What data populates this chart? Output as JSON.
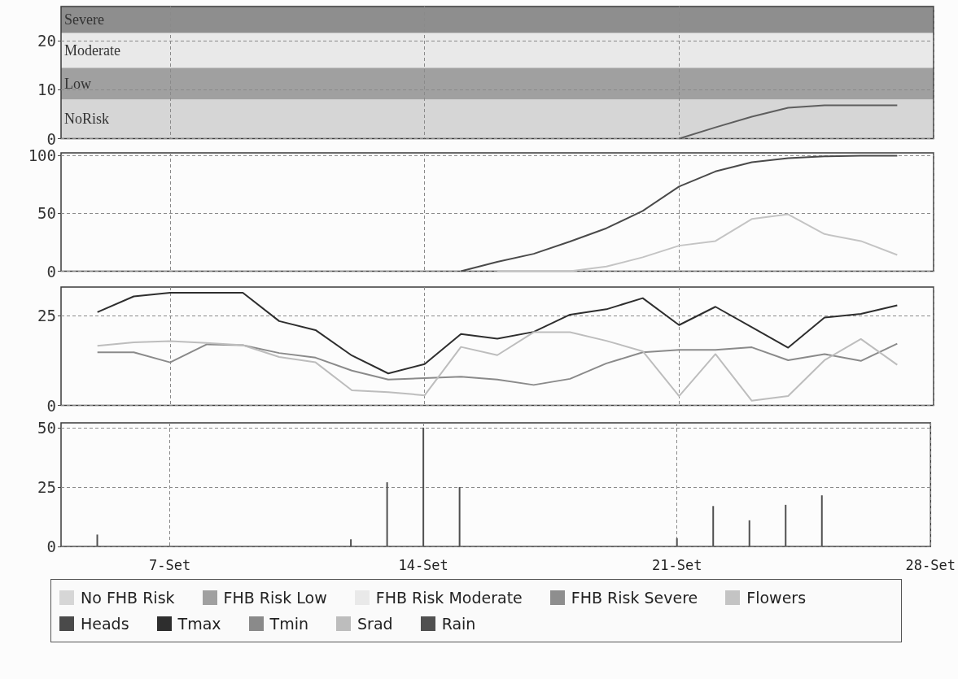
{
  "chart_data": [
    {
      "type": "line",
      "stacked": true,
      "xlim": [
        "--09-04",
        "--09-28"
      ],
      "xticks": [
        {
          "value": "--09-07",
          "label": "7-Set"
        },
        {
          "value": "--09-14",
          "label": "14-Set"
        },
        {
          "value": "--09-21",
          "label": "21-Set"
        },
        {
          "value": "--09-28",
          "label": "28-Set"
        }
      ],
      "ylim": [
        0,
        27
      ],
      "yticks": [
        0,
        10,
        20
      ],
      "grid": true,
      "tick_labels": "y",
      "legend": "bottom",
      "series": [
        {
          "name": "No FHB Risk",
          "type": "area",
          "color": "#d6d6d6",
          "x": [
            "--09-04",
            "--09-28"
          ],
          "values": [
            8,
            8
          ]
        },
        {
          "name": "FHB Risk Low",
          "type": "area",
          "color": "#a0a0a0",
          "x": [
            "--09-04",
            "--09-28"
          ],
          "values": [
            6.5,
            6.5
          ]
        },
        {
          "name": "FHB Risk Moderate",
          "type": "area",
          "color": "#e9e9e9",
          "x": [
            "--09-04",
            "--09-28"
          ],
          "values": [
            7.1,
            7.1
          ]
        },
        {
          "name": "FHB Risk Severe",
          "type": "area",
          "color": "#8e8e8e",
          "x": [
            "--09-04",
            "--09-28"
          ],
          "values": [
            5.4,
            5.4
          ]
        },
        {
          "color": "#5e5e5e",
          "x": [
            "--09-21",
            "--09-22",
            "--09-23",
            "--09-24",
            "--09-25",
            "--09-26",
            "--09-27"
          ],
          "values": [
            0,
            2.3,
            4.5,
            6.3,
            6.8,
            6.8,
            6.8
          ]
        }
      ],
      "annotations": [
        "NoRisk",
        "Low",
        "Moderate",
        "Severe"
      ]
    },
    {
      "type": "line",
      "xlim": [
        "--09-04",
        "--09-28"
      ],
      "xticks": [
        {
          "value": "--09-07",
          "label": "7-Set"
        },
        {
          "value": "--09-14",
          "label": "14-Set"
        },
        {
          "value": "--09-21",
          "label": "21-Set"
        },
        {
          "value": "--09-28",
          "label": "28-Set"
        }
      ],
      "ylim": [
        0,
        102
      ],
      "yticks": [
        0,
        50,
        100
      ],
      "grid": true,
      "tick_labels": "y",
      "legend": "bottom",
      "series": [
        {
          "name": "Flowers",
          "color": "#c4c4c4",
          "x": [
            "--09-16",
            "--09-17",
            "--09-18",
            "--09-19",
            "--09-20",
            "--09-21",
            "--09-22",
            "--09-23",
            "--09-24",
            "--09-25",
            "--09-26",
            "--09-27"
          ],
          "values": [
            0,
            0,
            0,
            4,
            12,
            22,
            26,
            45,
            49,
            32,
            26,
            14
          ]
        },
        {
          "name": "Heads",
          "color": "#4a4a4a",
          "x": [
            "--09-15",
            "--09-16",
            "--09-17",
            "--09-18",
            "--09-19",
            "--09-20",
            "--09-21",
            "--09-22",
            "--09-23",
            "--09-24",
            "--09-25",
            "--09-26",
            "--09-27"
          ],
          "values": [
            0,
            8,
            15,
            25.6,
            37,
            52,
            73,
            86,
            94,
            97.4,
            99,
            99.5,
            99.5
          ]
        }
      ]
    },
    {
      "type": "line",
      "xlim": [
        "--09-04",
        "--09-28"
      ],
      "xticks": [
        {
          "value": "--09-07",
          "label": "7-Set"
        },
        {
          "value": "--09-14",
          "label": "14-Set"
        },
        {
          "value": "--09-21",
          "label": "21-Set"
        },
        {
          "value": "--09-28",
          "label": "28-Set"
        }
      ],
      "ylim": [
        0,
        33
      ],
      "yticks": [
        0,
        25
      ],
      "grid": true,
      "tick_labels": "y",
      "legend": "bottom",
      "x": [
        "--09-05",
        "--09-06",
        "--09-07",
        "--09-08",
        "--09-09",
        "--09-10",
        "--09-11",
        "--09-12",
        "--09-13",
        "--09-14",
        "--09-15",
        "--09-16",
        "--09-17",
        "--09-18",
        "--09-19",
        "--09-20",
        "--09-21",
        "--09-22",
        "--09-23",
        "--09-24",
        "--09-25",
        "--09-26",
        "--09-27"
      ],
      "series": [
        {
          "name": "Tmax",
          "color": "#2e2e2e",
          "values": [
            26,
            30.4,
            31.4,
            31.4,
            31.4,
            23.5,
            21,
            13.9,
            8.9,
            11.5,
            19.9,
            18.6,
            20.5,
            25.3,
            26.8,
            29.9,
            22.4,
            27.5,
            21.8,
            16.1,
            24.5,
            25.5,
            27.9
          ]
        },
        {
          "name": "Tmin",
          "color": "#8a8a8a",
          "values": [
            14.8,
            14.8,
            12,
            17,
            16.8,
            14.6,
            13.3,
            9.7,
            7.2,
            7.6,
            8,
            7.2,
            5.7,
            7.4,
            11.7,
            14.8,
            15.5,
            15.5,
            16.2,
            12.6,
            14.3,
            12.4,
            17.2
          ]
        },
        {
          "name": "Srad",
          "color": "#bdbdbd",
          "values": [
            16.6,
            17.6,
            17.9,
            17.4,
            16.8,
            13.5,
            12,
            4.2,
            3.7,
            2.8,
            16.3,
            14,
            20.4,
            20.4,
            18,
            15.1,
            2.6,
            14.3,
            1.3,
            2.6,
            12.6,
            18.5,
            11.3
          ]
        }
      ]
    },
    {
      "type": "bar",
      "xlim": [
        "--09-04",
        "--09-28"
      ],
      "xticks": [
        {
          "value": "--09-07",
          "label": "7-Set"
        },
        {
          "value": "--09-14",
          "label": "14-Set"
        },
        {
          "value": "--09-21",
          "label": "21-Set"
        },
        {
          "value": "--09-28",
          "label": "28-Set"
        }
      ],
      "ylim": [
        0,
        52
      ],
      "yticks": [
        0,
        25,
        50
      ],
      "grid": true,
      "legend": "bottom",
      "series": [
        {
          "name": "Rain",
          "color": "#505050",
          "x": [
            "--09-05",
            "--09-12",
            "--09-13",
            "--09-14",
            "--09-15",
            "--09-21",
            "--09-22",
            "--09-23",
            "--09-24",
            "--09-25"
          ],
          "values": [
            5,
            3,
            27,
            50,
            25,
            3.5,
            17,
            11,
            17.5,
            21.5
          ]
        }
      ]
    }
  ]
}
